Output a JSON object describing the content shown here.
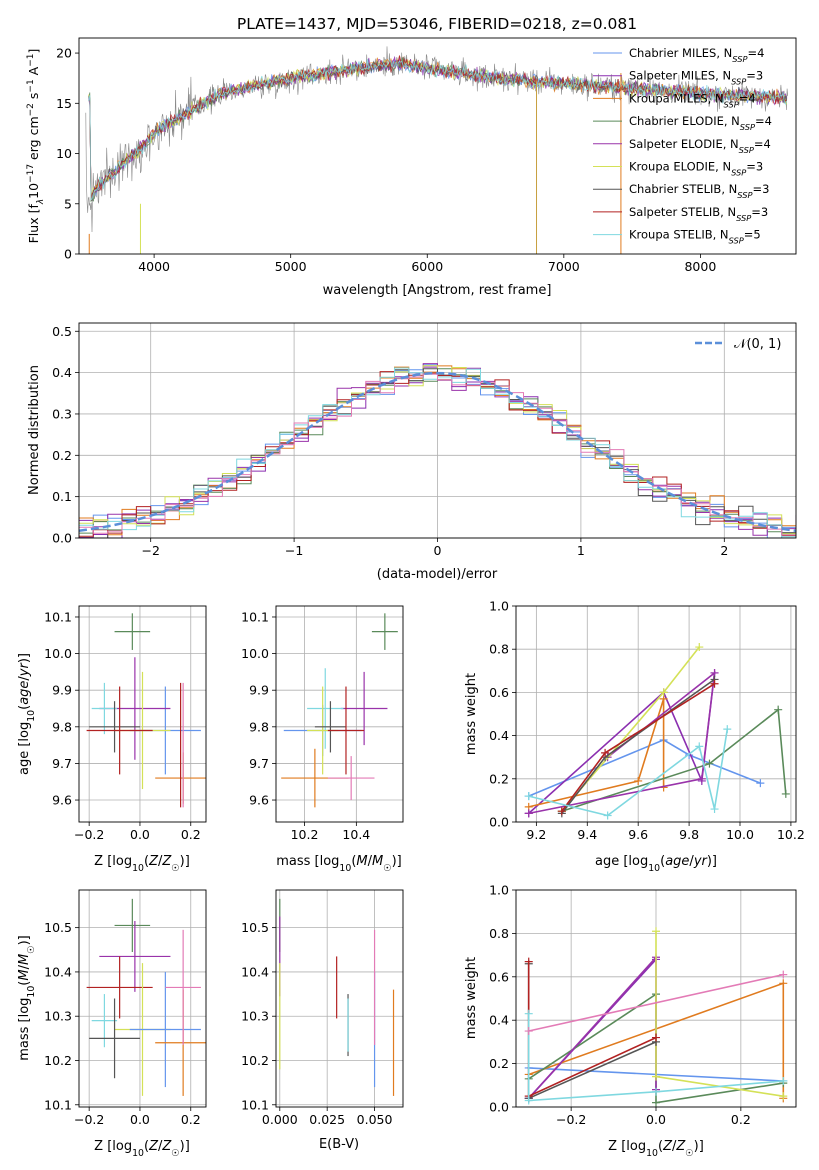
{
  "colors": {
    "Chabrier MILES": "#6495ed",
    "Salpeter MILES": "#8b2fb0",
    "Kroupa MILES": "#e07b1f",
    "Chabrier ELODIE": "#5a8a5a",
    "Salpeter ELODIE": "#9933aa",
    "Kroupa ELODIE": "#d4e157",
    "Chabrier STELIB": "#555555",
    "Salpeter STELIB": "#b22222",
    "Kroupa STELIB": "#7fd8e0",
    "pink": "#e37bb6"
  },
  "chart_data": [
    {
      "id": "spectrum",
      "type": "line",
      "title": "PLATE=1437, MJD=53046, FIBERID=0218, z=0.081",
      "xlabel": "wavelength [Angstrom, rest frame]",
      "ylabel_parts": [
        "Flux [f",
        "λ",
        "10",
        "−17",
        " erg cm",
        "−2",
        " s",
        "−1",
        " A",
        "−1",
        "]"
      ],
      "xlim": [
        3450,
        8700
      ],
      "ylim": [
        0,
        21.5
      ],
      "xticks": [
        4000,
        5000,
        6000,
        7000,
        8000
      ],
      "yticks": [
        0,
        5,
        10,
        15,
        20
      ],
      "legend": "top-right",
      "series": [
        {
          "name": "Chabrier MILES",
          "nssp": "4"
        },
        {
          "name": "Salpeter MILES",
          "nssp": "3"
        },
        {
          "name": "Kroupa MILES",
          "nssp": "4"
        },
        {
          "name": "Chabrier ELODIE",
          "nssp": "4"
        },
        {
          "name": "Salpeter ELODIE",
          "nssp": "4"
        },
        {
          "name": "Kroupa ELODIE",
          "nssp": "3"
        },
        {
          "name": "Chabrier STELIB",
          "nssp": "3"
        },
        {
          "name": "Salpeter STELIB",
          "nssp": "3"
        },
        {
          "name": "Kroupa STELIB",
          "nssp": "5"
        }
      ],
      "continuum": [
        [
          3530,
          5.5
        ],
        [
          3600,
          7.0
        ],
        [
          3700,
          8.0
        ],
        [
          3800,
          9.5
        ],
        [
          3900,
          10.5
        ],
        [
          4000,
          12.0
        ],
        [
          4100,
          13.0
        ],
        [
          4300,
          14.5
        ],
        [
          4500,
          16.0
        ],
        [
          5000,
          17.5
        ],
        [
          5500,
          18.5
        ],
        [
          5800,
          19.0
        ],
        [
          6000,
          18.5
        ],
        [
          6500,
          17.5
        ],
        [
          7000,
          17.0
        ],
        [
          7500,
          16.5
        ],
        [
          8000,
          16.0
        ],
        [
          8600,
          15.5
        ]
      ]
    },
    {
      "id": "residuals",
      "type": "histogram",
      "xlabel": "(data-model)/error",
      "ylabel": "Normed distribution",
      "xlim": [
        -2.5,
        2.5
      ],
      "ylim": [
        0,
        0.52
      ],
      "xticks": [
        -2,
        -1,
        0,
        1,
        2
      ],
      "yticks": [
        0.0,
        0.1,
        0.2,
        0.3,
        0.4,
        0.5
      ],
      "legend_label": "𝒩(0, 1)",
      "bin_width": 0.1
    },
    {
      "id": "age-vs-Z",
      "type": "errorbar",
      "xlabel": "Z [log10(Z/Z☉)]",
      "ylabel": "age  [log10(age/yr)]",
      "xlim": [
        -0.24,
        0.26
      ],
      "ylim": [
        9.54,
        10.13
      ],
      "xticks": [
        -0.2,
        0.0,
        0.2
      ],
      "yticks": [
        9.6,
        9.7,
        9.8,
        9.9,
        10.0,
        10.1
      ],
      "points": [
        {
          "series": "Chabrier ELODIE",
          "x": -0.03,
          "y": 10.06,
          "xerr": 0.07,
          "yerr": 0.05
        },
        {
          "series": "Chabrier MILES",
          "x": 0.1,
          "y": 9.79,
          "xerr": 0.14,
          "yerr": 0.12
        },
        {
          "series": "Salpeter ELODIE",
          "x": -0.02,
          "y": 9.85,
          "xerr": 0.14,
          "yerr": 0.14
        },
        {
          "series": "Kroupa STELIB",
          "x": -0.14,
          "y": 9.85,
          "xerr": 0.05,
          "yerr": 0.07
        },
        {
          "series": "Kroupa ELODIE",
          "x": 0.01,
          "y": 9.79,
          "xerr": 0.11,
          "yerr": 0.16
        },
        {
          "series": "Chabrier STELIB",
          "x": -0.1,
          "y": 9.8,
          "xerr": 0.1,
          "yerr": 0.07
        },
        {
          "series": "Salpeter STELIB",
          "x": -0.08,
          "y": 9.79,
          "xerr": 0.13,
          "yerr": 0.12
        },
        {
          "series": "Kroupa MILES",
          "x": 0.17,
          "y": 9.66,
          "xerr": 0.11,
          "yerr": 0.07
        },
        {
          "series": "pink",
          "x": 0.17,
          "y": 9.75,
          "xerr": 0.0,
          "yerr": 0.17
        },
        {
          "series": "Salpeter STELIB",
          "x": 0.16,
          "y": 9.75,
          "xerr": 0.0,
          "yerr": 0.17
        }
      ]
    },
    {
      "id": "age-vs-mass",
      "type": "errorbar",
      "xlabel": "mass [log10(M/M☉)]",
      "ylabel": "",
      "xlim": [
        10.09,
        10.58
      ],
      "ylim": [
        9.54,
        10.13
      ],
      "xticks": [
        10.2,
        10.4
      ],
      "yticks": [
        9.6,
        9.7,
        9.8,
        9.9,
        10.0,
        10.1
      ],
      "points": [
        {
          "series": "Chabrier ELODIE",
          "x": 10.51,
          "y": 10.06,
          "xerr": 0.05,
          "yerr": 0.05
        },
        {
          "series": "Salpeter ELODIE",
          "x": 10.43,
          "y": 9.85,
          "xerr": 0.09,
          "yerr": 0.1
        },
        {
          "series": "Kroupa STELIB",
          "x": 10.28,
          "y": 9.85,
          "xerr": 0.07,
          "yerr": 0.11
        },
        {
          "series": "Chabrier MILES",
          "x": 10.27,
          "y": 9.79,
          "xerr": 0.15,
          "yerr": 0.07
        },
        {
          "series": "Kroupa ELODIE",
          "x": 10.27,
          "y": 9.79,
          "xerr": 0.06,
          "yerr": 0.12
        },
        {
          "series": "Chabrier STELIB",
          "x": 10.3,
          "y": 9.8,
          "xerr": 0.06,
          "yerr": 0.07
        },
        {
          "series": "Salpeter STELIB",
          "x": 10.36,
          "y": 9.79,
          "xerr": 0.07,
          "yerr": 0.12
        },
        {
          "series": "Kroupa MILES",
          "x": 10.24,
          "y": 9.66,
          "xerr": 0.13,
          "yerr": 0.08
        },
        {
          "series": "pink",
          "x": 10.38,
          "y": 9.66,
          "xerr": 0.09,
          "yerr": 0.06
        }
      ]
    },
    {
      "id": "massweight-vs-age",
      "type": "line",
      "xlabel": "age  [log10(age/yr)]",
      "ylabel": "mass weight",
      "xlim": [
        9.12,
        10.22
      ],
      "ylim": [
        0,
        1.0
      ],
      "xticks": [
        9.2,
        9.4,
        9.6,
        9.8,
        10.0,
        10.2
      ],
      "yticks": [
        0.0,
        0.2,
        0.4,
        0.6,
        0.8,
        1.0
      ],
      "series": [
        {
          "name": "Chabrier MILES",
          "points": [
            [
              9.17,
              0.12
            ],
            [
              9.7,
              0.38
            ],
            [
              9.8,
              0.31
            ],
            [
              10.08,
              0.18
            ]
          ]
        },
        {
          "name": "Salpeter MILES",
          "points": [
            [
              9.17,
              0.04
            ],
            [
              9.7,
              0.6
            ],
            [
              9.85,
              0.19
            ],
            [
              9.9,
              0.69
            ]
          ]
        },
        {
          "name": "Kroupa MILES",
          "points": [
            [
              9.17,
              0.07
            ],
            [
              9.6,
              0.19
            ],
            [
              9.7,
              0.57
            ],
            [
              9.7,
              0.16
            ]
          ]
        },
        {
          "name": "Chabrier ELODIE",
          "points": [
            [
              9.3,
              0.05
            ],
            [
              9.88,
              0.27
            ],
            [
              10.15,
              0.52
            ],
            [
              10.18,
              0.13
            ]
          ]
        },
        {
          "name": "Salpeter ELODIE",
          "points": [
            [
              9.17,
              0.04
            ],
            [
              9.85,
              0.2
            ],
            [
              9.9,
              0.69
            ],
            [
              9.48,
              0.3
            ]
          ]
        },
        {
          "name": "Kroupa ELODIE",
          "points": [
            [
              9.3,
              0.05
            ],
            [
              9.7,
              0.6
            ],
            [
              9.84,
              0.81
            ]
          ]
        },
        {
          "name": "Chabrier STELIB",
          "points": [
            [
              9.3,
              0.04
            ],
            [
              9.47,
              0.3
            ],
            [
              9.9,
              0.66
            ]
          ]
        },
        {
          "name": "Salpeter STELIB",
          "points": [
            [
              9.3,
              0.05
            ],
            [
              9.47,
              0.32
            ],
            [
              9.9,
              0.64
            ]
          ]
        },
        {
          "name": "Kroupa STELIB",
          "points": [
            [
              9.17,
              0.12
            ],
            [
              9.48,
              0.03
            ],
            [
              9.84,
              0.35
            ],
            [
              9.9,
              0.06
            ],
            [
              9.95,
              0.43
            ]
          ]
        }
      ]
    },
    {
      "id": "mass-vs-Z",
      "type": "errorbar",
      "xlabel": "Z [log10(Z/Z☉)]",
      "ylabel": "mass [log10(M/M☉)]",
      "xlim": [
        -0.24,
        0.26
      ],
      "ylim": [
        10.095,
        10.585
      ],
      "xticks": [
        -0.2,
        0.0,
        0.2
      ],
      "yticks": [
        10.1,
        10.2,
        10.3,
        10.4,
        10.5
      ],
      "points": [
        {
          "series": "Chabrier ELODIE",
          "x": -0.03,
          "y": 10.505,
          "xerr": 0.07,
          "yerr": 0.06
        },
        {
          "series": "Salpeter ELODIE",
          "x": -0.02,
          "y": 10.435,
          "xerr": 0.14,
          "yerr": 0.08
        },
        {
          "series": "Salpeter STELIB",
          "x": -0.08,
          "y": 10.365,
          "xerr": 0.13,
          "yerr": 0.07
        },
        {
          "series": "Kroupa STELIB",
          "x": -0.14,
          "y": 10.29,
          "xerr": 0.05,
          "yerr": 0.06
        },
        {
          "series": "Kroupa ELODIE",
          "x": 0.01,
          "y": 10.27,
          "xerr": 0.11,
          "yerr": 0.15
        },
        {
          "series": "Chabrier MILES",
          "x": 0.1,
          "y": 10.27,
          "xerr": 0.14,
          "yerr": 0.13
        },
        {
          "series": "Chabrier STELIB",
          "x": -0.1,
          "y": 10.25,
          "xerr": 0.1,
          "yerr": 0.09
        },
        {
          "series": "Kroupa MILES",
          "x": 0.17,
          "y": 10.24,
          "xerr": 0.11,
          "yerr": 0.12
        },
        {
          "series": "pink",
          "x": 0.17,
          "y": 10.365,
          "xerr": 0.07,
          "yerr": 0.13
        }
      ]
    },
    {
      "id": "mass-vs-ebv",
      "type": "errorbar",
      "xlabel": "E(B-V)",
      "ylabel": "",
      "xlim": [
        -0.002,
        0.065
      ],
      "ylim": [
        10.095,
        10.585
      ],
      "xticks": [
        0.0,
        0.025,
        0.05
      ],
      "xticklabels": [
        "0.000",
        "0.025",
        "0.050"
      ],
      "yticks": [
        10.1,
        10.2,
        10.3,
        10.4,
        10.5
      ],
      "points": [
        {
          "series": "Chabrier ELODIE",
          "x": 0.0,
          "y": 10.505,
          "xerr": 0,
          "yerr": 0.06
        },
        {
          "series": "Salpeter ELODIE",
          "x": 0.0,
          "y": 10.435,
          "xerr": 0,
          "yerr": 0.09
        },
        {
          "series": "Kroupa ELODIE",
          "x": 0.0,
          "y": 10.3,
          "xerr": 0,
          "yerr": 0.12
        },
        {
          "series": "Salpeter STELIB",
          "x": 0.03,
          "y": 10.365,
          "xerr": 0,
          "yerr": 0.07
        },
        {
          "series": "Chabrier STELIB",
          "x": 0.036,
          "y": 10.28,
          "xerr": 0,
          "yerr": 0.07
        },
        {
          "series": "Kroupa STELIB",
          "x": 0.036,
          "y": 10.28,
          "xerr": 0,
          "yerr": 0.06
        },
        {
          "series": "Chabrier MILES",
          "x": 0.05,
          "y": 10.27,
          "xerr": 0,
          "yerr": 0.13
        },
        {
          "series": "pink",
          "x": 0.05,
          "y": 10.365,
          "xerr": 0,
          "yerr": 0.13
        },
        {
          "series": "Kroupa MILES",
          "x": 0.06,
          "y": 10.24,
          "xerr": 0,
          "yerr": 0.12
        }
      ]
    },
    {
      "id": "massweight-vs-Z",
      "type": "line",
      "xlabel": "Z [log10(Z/Z☉)]",
      "ylabel": "mass weight",
      "xlim": [
        -0.33,
        0.33
      ],
      "ylim": [
        0,
        1.0
      ],
      "xticks": [
        -0.2,
        0.0,
        0.2
      ],
      "yticks": [
        0.0,
        0.2,
        0.4,
        0.6,
        0.8,
        1.0
      ],
      "series": [
        {
          "name": "Chabrier MILES",
          "points": [
            [
              -0.3,
              0.18
            ],
            [
              0.3,
              0.12
            ]
          ]
        },
        {
          "name": "Salpeter MILES",
          "points": [
            [
              -0.3,
              0.04
            ],
            [
              0.0,
              0.68
            ]
          ]
        },
        {
          "name": "Kroupa MILES",
          "points": [
            [
              -0.3,
              0.15
            ],
            [
              0.3,
              0.57
            ],
            [
              0.3,
              0.04
            ]
          ]
        },
        {
          "name": "Chabrier ELODIE",
          "points": [
            [
              -0.3,
              0.13
            ],
            [
              0.0,
              0.52
            ],
            [
              0.0,
              0.02
            ],
            [
              0.3,
              0.11
            ]
          ]
        },
        {
          "name": "Salpeter ELODIE",
          "points": [
            [
              -0.3,
              0.04
            ],
            [
              0.0,
              0.69
            ],
            [
              0.0,
              0.08
            ]
          ]
        },
        {
          "name": "Kroupa ELODIE",
          "points": [
            [
              0.0,
              0.81
            ],
            [
              0.0,
              0.14
            ],
            [
              0.3,
              0.05
            ]
          ]
        },
        {
          "name": "Chabrier STELIB",
          "points": [
            [
              -0.3,
              0.66
            ],
            [
              -0.3,
              0.04
            ],
            [
              0.0,
              0.3
            ]
          ]
        },
        {
          "name": "Salpeter STELIB",
          "points": [
            [
              -0.3,
              0.67
            ],
            [
              -0.3,
              0.05
            ],
            [
              0.0,
              0.32
            ]
          ]
        },
        {
          "name": "Kroupa STELIB",
          "points": [
            [
              -0.3,
              0.43
            ],
            [
              -0.3,
              0.03
            ],
            [
              0.0,
              0.07
            ],
            [
              0.3,
              0.12
            ]
          ]
        },
        {
          "name": "pink",
          "points": [
            [
              -0.3,
              0.35
            ],
            [
              0.3,
              0.61
            ]
          ]
        }
      ]
    }
  ]
}
